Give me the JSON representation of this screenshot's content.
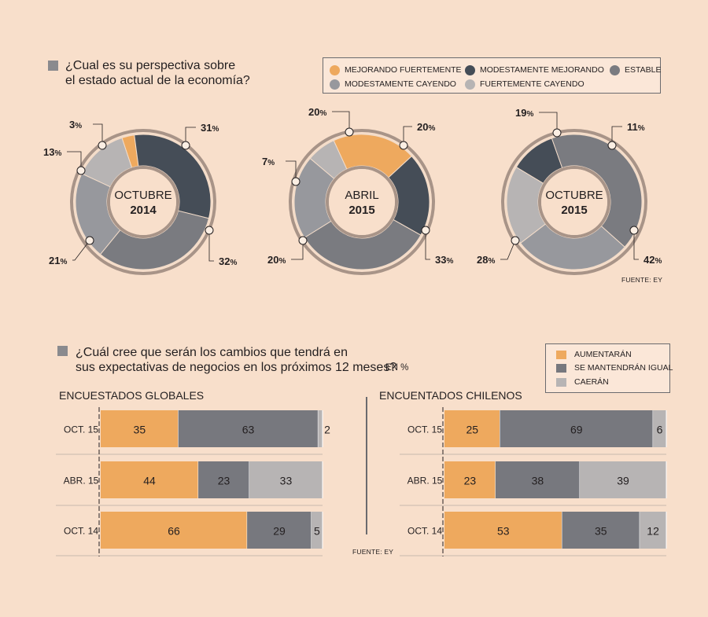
{
  "colors": {
    "mejorando_fuertemente": "#eea95e",
    "modestamente_mejorando": "#454d57",
    "estable": "#7a7b80",
    "modestamente_cayendo": "#97989d",
    "fuertemente_cayendo": "#b7b4b4",
    "aumentaran": "#eea95e",
    "se_mantendran": "#77787e",
    "caeran": "#b7b4b4",
    "ring": "#a89488",
    "background": "#f8dfcb"
  },
  "q1": {
    "text_line1": "¿Cual es su perspectiva sobre",
    "text_line2": "el estado actual de la economía?",
    "source": "FUENTE: EY",
    "legend": [
      {
        "key": "mejorando_fuertemente",
        "label": "MEJORANDO FUERTEMENTE"
      },
      {
        "key": "modestamente_mejorando",
        "label": "MODESTAMENTE MEJORANDO"
      },
      {
        "key": "estable",
        "label": "ESTABLE"
      },
      {
        "key": "modestamente_cayendo",
        "label": "MODESTAMENTE CAYENDO"
      },
      {
        "key": "fuertemente_cayendo",
        "label": "FUERTEMENTE CAYENDO"
      }
    ]
  },
  "q2": {
    "text_line1": "¿Cuál cree que serán los cambios que tendrá en",
    "text_line2": "sus expectativas de negocios en los próximos 12 meses?",
    "unit": "EN %",
    "source": "FUENTE: EY",
    "legend": [
      {
        "key": "aumentaran",
        "label": "AUMENTARÁN"
      },
      {
        "key": "se_mantendran",
        "label": "SE MANTENDRÁN IGUAL"
      },
      {
        "key": "caeran",
        "label": "CAERÁN"
      }
    ]
  },
  "chart_data": [
    {
      "type": "pie",
      "title": "OCTUBRE 2014",
      "center_line1": "OCTUBRE",
      "center_line2": "2014",
      "categories": [
        "MEJORANDO FUERTEMENTE",
        "MODESTAMENTE MEJORANDO",
        "ESTABLE",
        "MODESTAMENTE CAYENDO",
        "FUERTEMENTE CAYENDO"
      ],
      "values": [
        3,
        31,
        32,
        21,
        13
      ],
      "labels": [
        "3",
        "31",
        "32",
        "21",
        "13"
      ],
      "unit": "%"
    },
    {
      "type": "pie",
      "title": "ABRIL 2015",
      "center_line1": "ABRIL",
      "center_line2": "2015",
      "categories": [
        "MEJORANDO FUERTEMENTE",
        "MODESTAMENTE MEJORANDO",
        "ESTABLE",
        "MODESTAMENTE CAYENDO",
        "FUERTEMENTE CAYENDO"
      ],
      "values": [
        20,
        20,
        33,
        20,
        7
      ],
      "labels": [
        "20",
        "20",
        "33",
        "20",
        "7"
      ],
      "unit": "%"
    },
    {
      "type": "pie",
      "title": "OCTUBRE 2015",
      "center_line1": "OCTUBRE",
      "center_line2": "2015",
      "categories": [
        "MEJORANDO FUERTEMENTE",
        "MODESTAMENTE MEJORANDO",
        "ESTABLE",
        "MODESTAMENTE CAYENDO",
        "FUERTEMENTE CAYENDO"
      ],
      "values": [
        0,
        11,
        42,
        28,
        19
      ],
      "labels": [
        "",
        "11",
        "42",
        "28",
        "19"
      ],
      "unit": "%"
    },
    {
      "type": "bar",
      "orientation": "horizontal",
      "stacked": true,
      "title": "ENCUESTADOS GLOBALES",
      "categories": [
        "OCT. 15",
        "ABR. 15",
        "OCT. 14"
      ],
      "series": [
        {
          "name": "AUMENTARÁN",
          "key": "aumentaran",
          "values": [
            35,
            44,
            66
          ]
        },
        {
          "name": "SE MANTENDRÁN IGUAL",
          "key": "se_mantendran",
          "values": [
            63,
            23,
            29
          ]
        },
        {
          "name": "CAERÁN",
          "key": "caeran",
          "values": [
            2,
            33,
            5
          ]
        }
      ],
      "xlim": [
        0,
        100
      ],
      "unit": "EN %"
    },
    {
      "type": "bar",
      "orientation": "horizontal",
      "stacked": true,
      "title": "ENCUENTADOS CHILENOS",
      "categories": [
        "OCT. 15",
        "ABR. 15",
        "OCT. 14"
      ],
      "series": [
        {
          "name": "AUMENTARÁN",
          "key": "aumentaran",
          "values": [
            25,
            23,
            53
          ]
        },
        {
          "name": "SE MANTENDRÁN IGUAL",
          "key": "se_mantendran",
          "values": [
            69,
            38,
            35
          ]
        },
        {
          "name": "CAERÁN",
          "key": "caeran",
          "values": [
            6,
            39,
            12
          ]
        }
      ],
      "xlim": [
        0,
        100
      ],
      "unit": "EN %"
    }
  ]
}
